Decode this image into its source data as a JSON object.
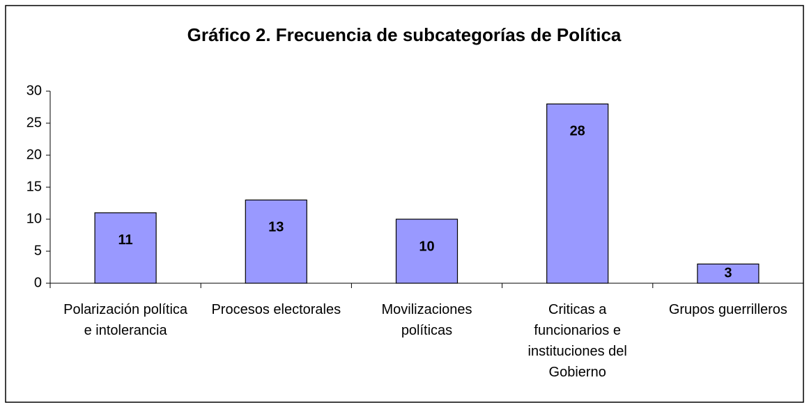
{
  "chart_data": {
    "type": "bar",
    "title": "Gráfico 2. Frecuencia de subcategorías de Política",
    "categories": [
      "Polarización política e intolerancia",
      "Procesos electorales",
      "Movilizaciones políticas",
      "Criticas a funcionarios e instituciones del Gobierno",
      "Grupos guerrilleros"
    ],
    "values": [
      11,
      13,
      10,
      28,
      3
    ],
    "color": "#9999ff",
    "ylim": [
      0,
      30
    ],
    "yticks": [
      0,
      5,
      10,
      15,
      20,
      25,
      30
    ],
    "grid": false
  }
}
